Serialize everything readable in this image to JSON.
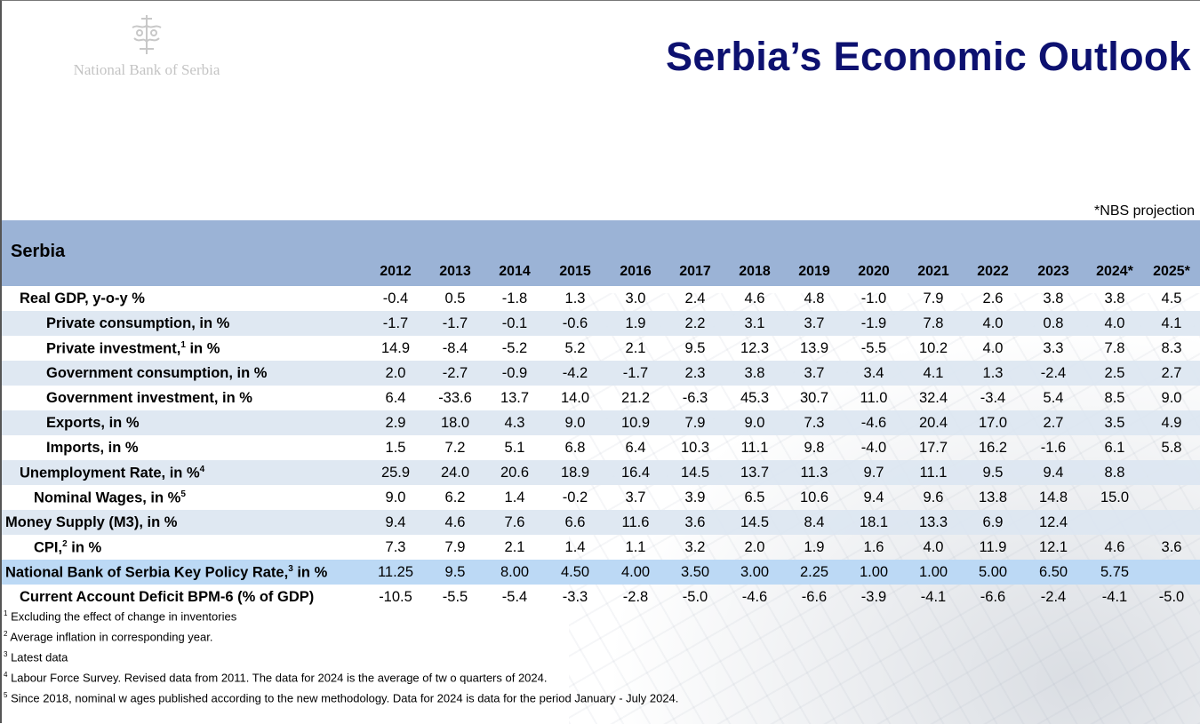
{
  "logo": {
    "text": "National Bank of Serbia"
  },
  "title": "Serbia’s Economic Outlook",
  "projection_note": "*NBS projection",
  "table": {
    "country": "Serbia",
    "years": [
      "2012",
      "2013",
      "2014",
      "2015",
      "2016",
      "2017",
      "2018",
      "2019",
      "2020",
      "2021",
      "2022",
      "2023",
      "2024*",
      "2025*"
    ],
    "rows": [
      {
        "label": "Real GDP, y-o-y %",
        "sup": "",
        "suffix": "",
        "indent": "level1",
        "values": [
          "-0.4",
          "0.5",
          "-1.8",
          "1.3",
          "3.0",
          "2.4",
          "4.6",
          "4.8",
          "-1.0",
          "7.9",
          "2.6",
          "3.8",
          "3.8",
          "4.5"
        ]
      },
      {
        "label": "Private consumption, in %",
        "sup": "",
        "suffix": "",
        "indent": "level2",
        "values": [
          "-1.7",
          "-1.7",
          "-0.1",
          "-0.6",
          "1.9",
          "2.2",
          "3.1",
          "3.7",
          "-1.9",
          "7.8",
          "4.0",
          "0.8",
          "4.0",
          "4.1"
        ]
      },
      {
        "label": "Private investment,",
        "sup": "1",
        "suffix": " in %",
        "indent": "level2",
        "values": [
          "14.9",
          "-8.4",
          "-5.2",
          "5.2",
          "2.1",
          "9.5",
          "12.3",
          "13.9",
          "-5.5",
          "10.2",
          "4.0",
          "3.3",
          "7.8",
          "8.3"
        ]
      },
      {
        "label": "Government consumption, in %",
        "sup": "",
        "suffix": "",
        "indent": "level2",
        "values": [
          "2.0",
          "-2.7",
          "-0.9",
          "-4.2",
          "-1.7",
          "2.3",
          "3.8",
          "3.7",
          "3.4",
          "4.1",
          "1.3",
          "-2.4",
          "2.5",
          "2.7"
        ]
      },
      {
        "label": "Government investment, in %",
        "sup": "",
        "suffix": "",
        "indent": "level2",
        "values": [
          "6.4",
          "-33.6",
          "13.7",
          "14.0",
          "21.2",
          "-6.3",
          "45.3",
          "30.7",
          "11.0",
          "32.4",
          "-3.4",
          "5.4",
          "8.5",
          "9.0"
        ]
      },
      {
        "label": "Exports, in %",
        "sup": "",
        "suffix": "",
        "indent": "level2",
        "values": [
          "2.9",
          "18.0",
          "4.3",
          "9.0",
          "10.9",
          "7.9",
          "9.0",
          "7.3",
          "-4.6",
          "20.4",
          "17.0",
          "2.7",
          "3.5",
          "4.9"
        ]
      },
      {
        "label": "Imports, in %",
        "sup": "",
        "suffix": "",
        "indent": "level2",
        "values": [
          "1.5",
          "7.2",
          "5.1",
          "6.8",
          "6.4",
          "10.3",
          "11.1",
          "9.8",
          "-4.0",
          "17.7",
          "16.2",
          "-1.6",
          "6.1",
          "5.8"
        ]
      },
      {
        "label": "Unemployment Rate, in %",
        "sup": "4",
        "suffix": "",
        "indent": "level1",
        "values": [
          "25.9",
          "24.0",
          "20.6",
          "18.9",
          "16.4",
          "14.5",
          "13.7",
          "11.3",
          "9.7",
          "11.1",
          "9.5",
          "9.4",
          "8.8",
          ""
        ]
      },
      {
        "label": "Nominal Wages, in %",
        "sup": "5",
        "suffix": "",
        "indent": "level1b",
        "values": [
          "9.0",
          "6.2",
          "1.4",
          "-0.2",
          "3.7",
          "3.9",
          "6.5",
          "10.6",
          "9.4",
          "9.6",
          "13.8",
          "14.8",
          "15.0",
          ""
        ]
      },
      {
        "label": "Money Supply (M3), in %",
        "sup": "",
        "suffix": "",
        "indent": "level0",
        "values": [
          "9.4",
          "4.6",
          "7.6",
          "6.6",
          "11.6",
          "3.6",
          "14.5",
          "8.4",
          "18.1",
          "13.3",
          "6.9",
          "12.4",
          "",
          ""
        ]
      },
      {
        "label": "CPI,",
        "sup": "2",
        "suffix": " in %",
        "indent": "level1b",
        "values": [
          "7.3",
          "7.9",
          "2.1",
          "1.4",
          "1.1",
          "3.2",
          "2.0",
          "1.9",
          "1.6",
          "4.0",
          "11.9",
          "12.1",
          "4.6",
          "3.6"
        ]
      },
      {
        "label": "National Bank of Serbia Key Policy Rate,",
        "sup": "3",
        "suffix": " in %",
        "indent": "level0",
        "values": [
          "11.25",
          "9.5",
          "8.00",
          "4.50",
          "4.00",
          "3.50",
          "3.00",
          "2.25",
          "1.00",
          "1.00",
          "5.00",
          "6.50",
          "5.75",
          ""
        ]
      },
      {
        "label": "Current Account Deficit BPM-6 (% of GDP)",
        "sup": "",
        "suffix": "",
        "indent": "level1",
        "values": [
          "-10.5",
          "-5.5",
          "-5.4",
          "-3.3",
          "-2.8",
          "-5.0",
          "-4.6",
          "-6.6",
          "-3.9",
          "-4.1",
          "-6.6",
          "-2.4",
          "-4.1",
          "-5.0"
        ]
      }
    ]
  },
  "footnotes": [
    {
      "mark": "1",
      "text": " Excluding the effect of change in inventories"
    },
    {
      "mark": "2",
      "text": " Average inflation in corresponding year."
    },
    {
      "mark": "3",
      "text": " Latest data"
    },
    {
      "mark": "4",
      "text": " Labour Force Survey. Revised data from 2011. The data for 2024 is the average of tw o quarters of 2024."
    },
    {
      "mark": "5",
      "text": " Since 2018, nominal w ages published according to the new  methodology. Data for 2024 is data for the period January - July 2024."
    }
  ],
  "colors": {
    "title": "#0d1170",
    "header_band": "#9bb3d6",
    "alt_row": "#dce6f1",
    "policy_row": "#bcd9f5"
  }
}
